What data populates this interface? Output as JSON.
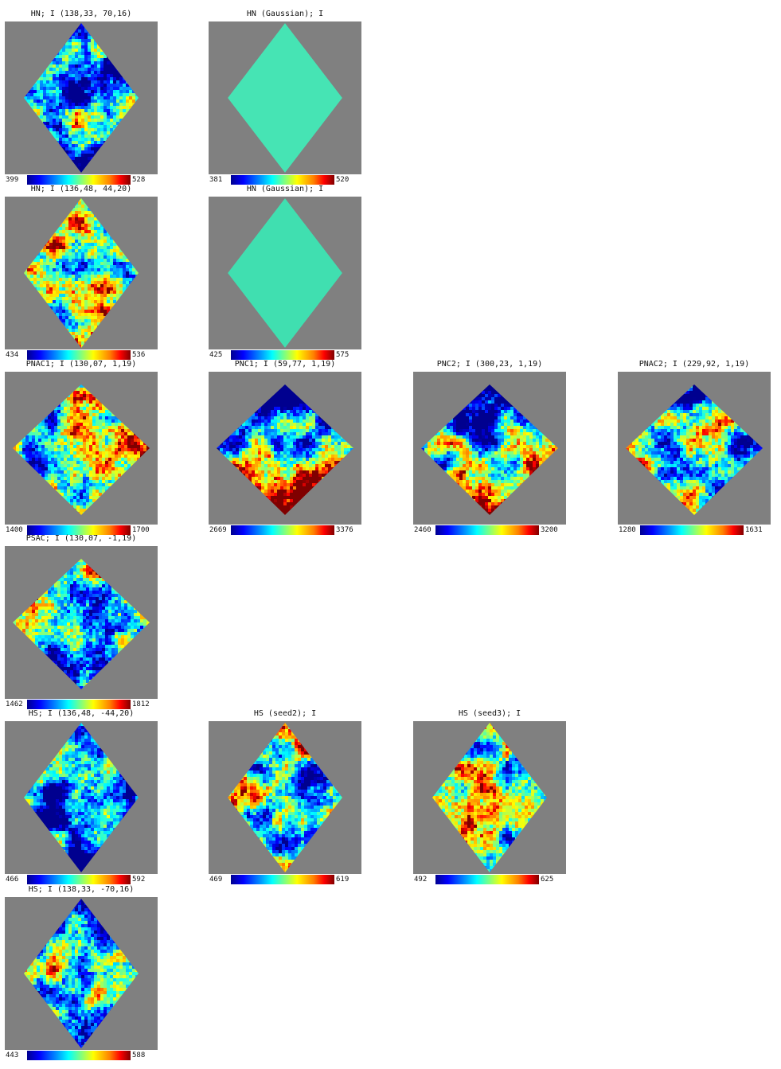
{
  "panels": [
    {
      "id": "p1",
      "title": "HN; I (138,33,  70,16)",
      "min": "399",
      "max": "528",
      "shape": "tall",
      "pattern": "noise",
      "seed": 11,
      "grad": 0.0,
      "bias": -0.25
    },
    {
      "id": "p2",
      "title": "HN (Gaussian); I",
      "min": "381",
      "max": "520",
      "shape": "tall",
      "pattern": "uniform",
      "seed": 0,
      "grad": 0.0,
      "bias": 0.0,
      "fill": "#46e4b4"
    },
    {
      "id": "p3",
      "title": "HN; I (136,48,  44,20)",
      "min": "434",
      "max": "536",
      "shape": "tall",
      "pattern": "noise",
      "seed": 23,
      "grad": 0.0,
      "bias": 0.1
    },
    {
      "id": "p4",
      "title": "HN (Gaussian); I",
      "min": "425",
      "max": "575",
      "shape": "tall",
      "pattern": "uniform",
      "seed": 0,
      "grad": 0.0,
      "bias": 0.0,
      "fill": "#40dfb0"
    },
    {
      "id": "p5",
      "title": "PNAC1; I (130,07, 1,19)",
      "min": "1400",
      "max": "1700",
      "shape": "wide",
      "pattern": "noise",
      "seed": 37,
      "grad": 0.0,
      "bias": 0.05
    },
    {
      "id": "p6",
      "title": "PNC1; I (59,77, 1,19)",
      "min": "2669",
      "max": "3376",
      "shape": "wide",
      "pattern": "noise",
      "seed": 41,
      "grad": 0.55,
      "bias": 0.0
    },
    {
      "id": "p7",
      "title": "PNC2; I (300,23, 1,19)",
      "min": "2460",
      "max": "3200",
      "shape": "wide",
      "pattern": "noise",
      "seed": 53,
      "grad": 0.45,
      "bias": -0.05
    },
    {
      "id": "p8",
      "title": "PNAC2; I (229,92, 1,19)",
      "min": "1280",
      "max": "1631",
      "shape": "wide",
      "pattern": "noise",
      "seed": 61,
      "grad": 0.15,
      "bias": -0.05
    },
    {
      "id": "p9",
      "title": "PSAC; I (130,07, -1,19)",
      "min": "1462",
      "max": "1812",
      "shape": "wide",
      "pattern": "noise",
      "seed": 71,
      "grad": 0.0,
      "bias": 0.0
    },
    {
      "id": "p10",
      "title": "HS; I (136,48, -44,20)",
      "min": "466",
      "max": "592",
      "shape": "tall",
      "pattern": "noise",
      "seed": 83,
      "grad": 0.0,
      "bias": -0.3
    },
    {
      "id": "p11",
      "title": "HS (seed2); I",
      "min": "469",
      "max": "619",
      "shape": "tall",
      "pattern": "noise",
      "seed": 97,
      "grad": 0.0,
      "bias": -0.05
    },
    {
      "id": "p12",
      "title": "HS (seed3); I",
      "min": "492",
      "max": "625",
      "shape": "tall",
      "pattern": "noise",
      "seed": 101,
      "grad": 0.0,
      "bias": 0.0
    },
    {
      "id": "p13",
      "title": "HS; I (138,33, -70,16)",
      "min": "443",
      "max": "588",
      "shape": "tall",
      "pattern": "noise",
      "seed": 113,
      "grad": 0.0,
      "bias": -0.05
    }
  ]
}
